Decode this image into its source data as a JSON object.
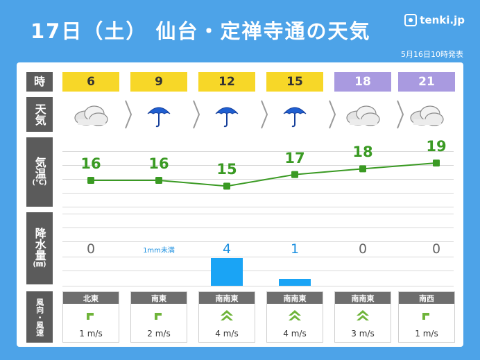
{
  "header": {
    "title": "17日（土） 仙台・定禅寺通の天気",
    "logo": "tenki.jp",
    "issued": "5月16日10時発表"
  },
  "labels": {
    "time": "時",
    "weather": "天気",
    "temp": "気温",
    "temp_unit": "(℃)",
    "precip": "降水量",
    "precip_unit": "(㎜)",
    "wind": "風向・風速"
  },
  "hours": [
    {
      "time": "6",
      "period": "day",
      "weather": "cloudy",
      "icon": "cloud-icon",
      "temp": "16",
      "precip": "0",
      "wind_dir": "北東",
      "wind_speed": "1 m/s",
      "wind_icon": "wind-arrow-single-icon"
    },
    {
      "time": "9",
      "period": "day",
      "weather": "rain",
      "icon": "umbrella-icon",
      "temp": "16",
      "precip": "1mm未満",
      "wind_dir": "南東",
      "wind_speed": "2 m/s",
      "wind_icon": "wind-arrow-single-icon"
    },
    {
      "time": "12",
      "period": "day",
      "weather": "rain",
      "icon": "umbrella-icon",
      "temp": "15",
      "precip": "4",
      "wind_dir": "南南東",
      "wind_speed": "4 m/s",
      "wind_icon": "wind-arrow-double-icon"
    },
    {
      "time": "15",
      "period": "day",
      "weather": "rain",
      "icon": "umbrella-icon",
      "temp": "17",
      "precip": "1",
      "wind_dir": "南南東",
      "wind_speed": "4 m/s",
      "wind_icon": "wind-arrow-double-icon"
    },
    {
      "time": "18",
      "period": "night",
      "weather": "cloudy",
      "icon": "cloud-icon",
      "temp": "18",
      "precip": "0",
      "wind_dir": "南南東",
      "wind_speed": "3 m/s",
      "wind_icon": "wind-arrow-double-icon"
    },
    {
      "time": "21",
      "period": "night",
      "weather": "cloudy",
      "icon": "cloud-icon",
      "temp": "19",
      "precip": "0",
      "wind_dir": "南西",
      "wind_speed": "1 m/s",
      "wind_icon": "wind-arrow-single-icon"
    }
  ],
  "colors": {
    "background": "#4da3e8",
    "day": "#f7d728",
    "night": "#a99ae0",
    "temp_line": "#3a9a23",
    "precip_bar": "#1aa4f5",
    "wind_arrow": "#6fb43a"
  },
  "chart_data": {
    "type": "line",
    "x": [
      "6",
      "9",
      "12",
      "15",
      "18",
      "21"
    ],
    "series": [
      {
        "values": [
          16,
          16,
          15,
          17,
          18,
          19
        ]
      }
    ],
    "precip_bars": [
      0,
      0,
      4,
      1,
      0,
      0
    ]
  }
}
